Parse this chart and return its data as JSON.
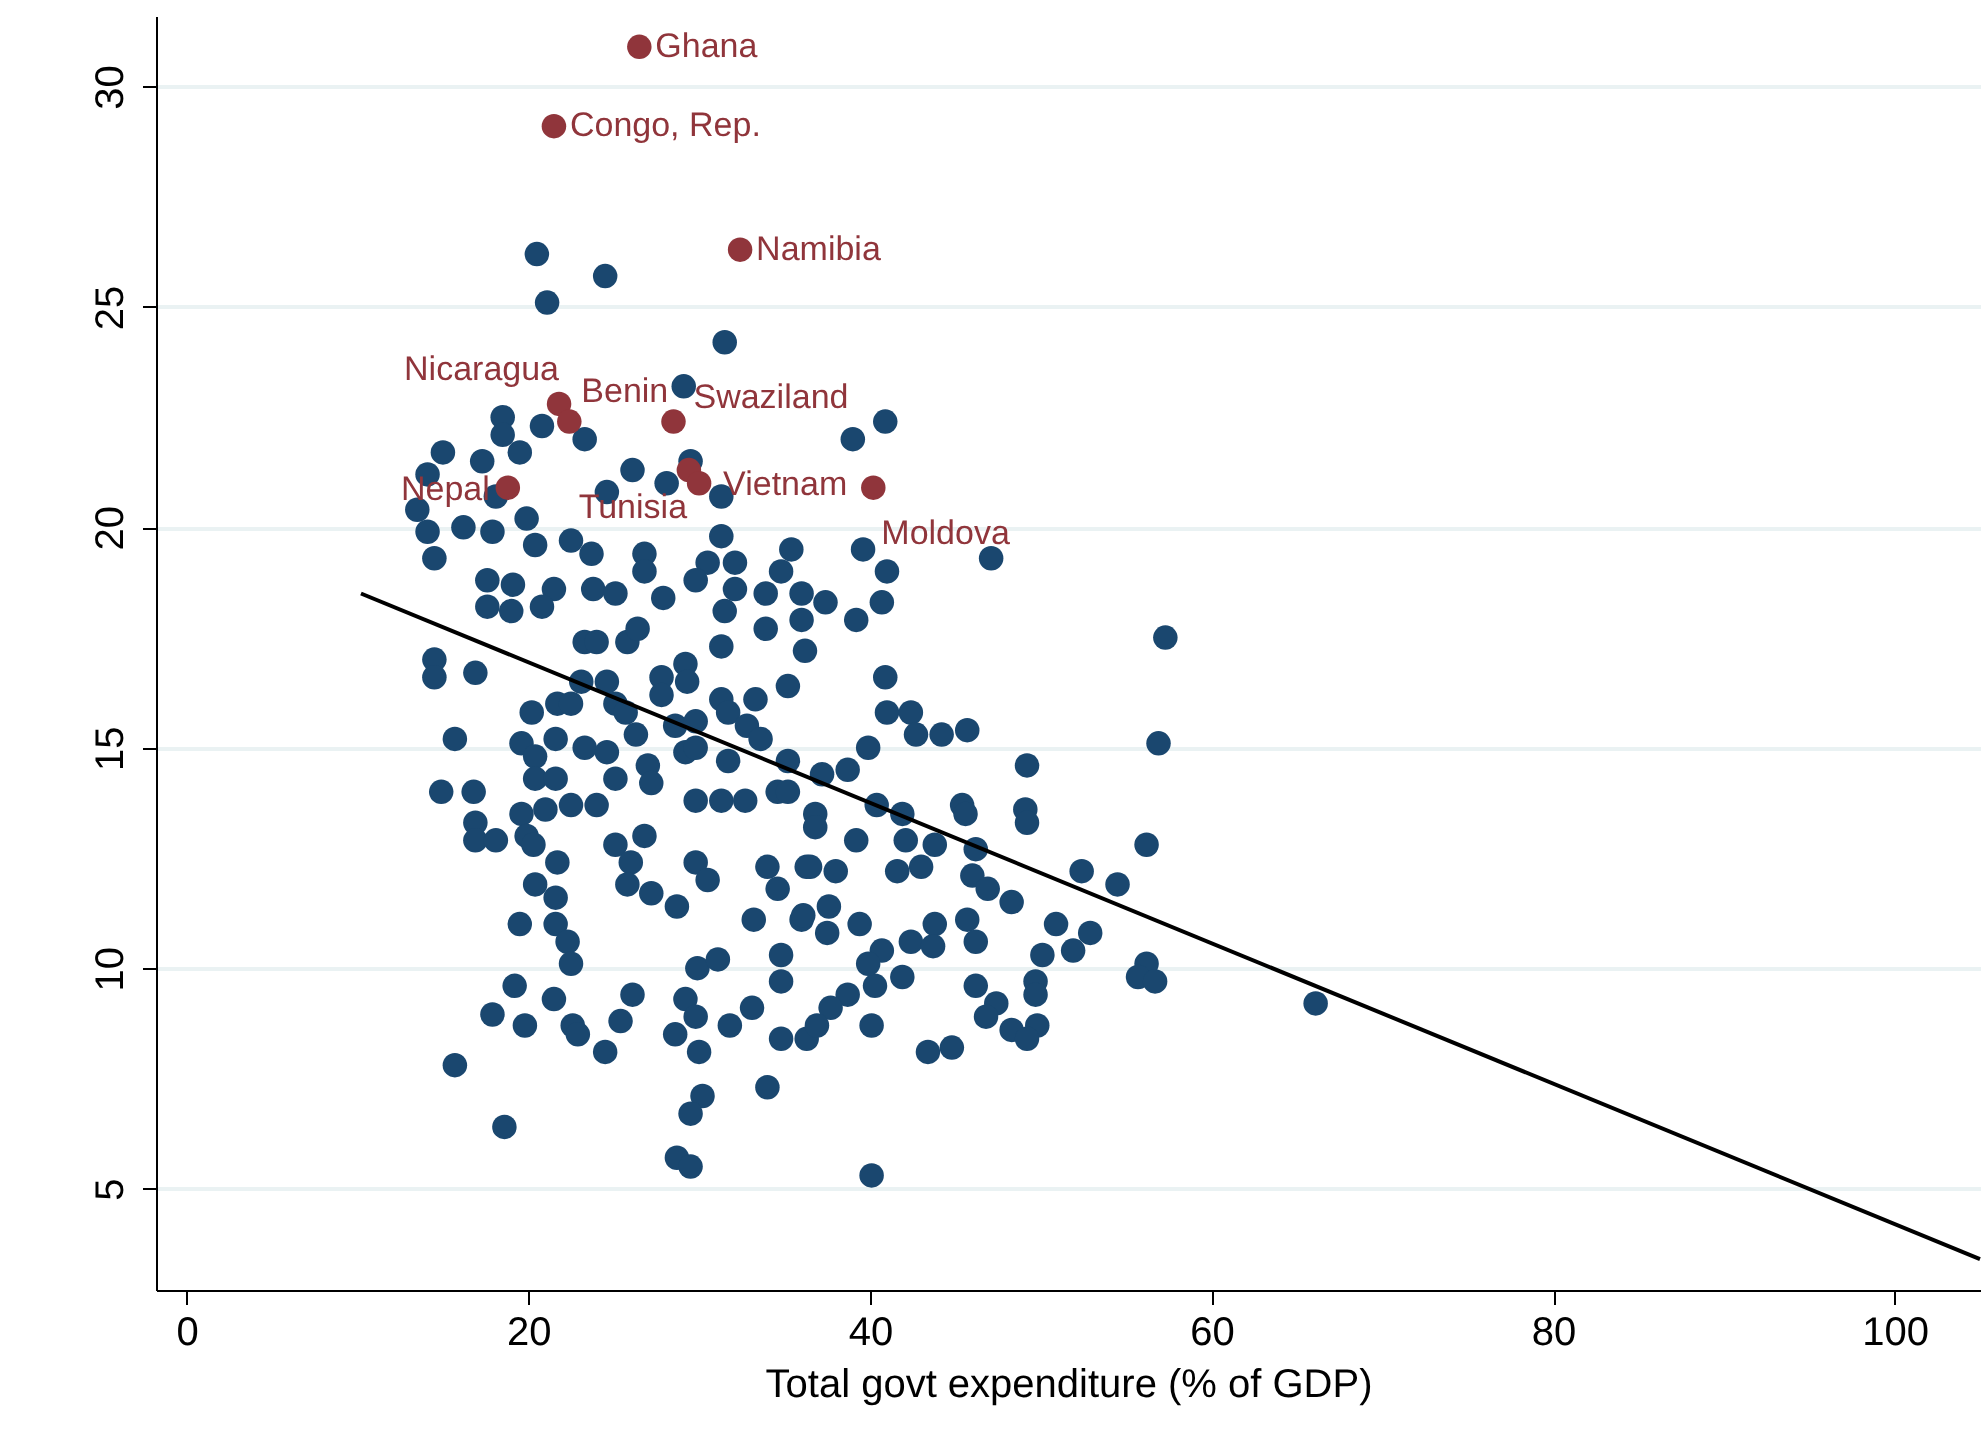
{
  "chart_data": {
    "type": "scatter",
    "xlabel": "Total govt expenditure (% of GDP)",
    "xlim": [
      -1.8,
      105
    ],
    "ylim": [
      2.7,
      31.6
    ],
    "xticks": [
      0,
      20,
      40,
      60,
      80,
      100
    ],
    "yticks": [
      5,
      10,
      15,
      20,
      25,
      30
    ],
    "grid": "y",
    "marker": "circle",
    "series": [
      {
        "color": "#1a476f",
        "x": [
          20.5,
          21.1,
          24.5,
          31.5,
          29.1,
          18.5,
          20.8,
          23.3,
          18.5,
          19.5,
          15.0,
          17.3,
          39.0,
          40.9,
          14.1,
          13.5,
          14.1,
          14.5,
          16.2,
          17.9,
          18.1,
          26.1,
          28.1,
          29.5,
          31.3,
          24.6,
          19.9,
          20.4,
          22.5,
          23.7,
          26.8,
          26.8,
          31.3,
          30.5,
          32.1,
          35.4,
          34.8,
          39.6,
          41.0,
          47.1,
          17.6,
          19.1,
          21.5,
          23.8,
          25.1,
          27.9,
          29.8,
          32.1,
          33.9,
          36.0,
          37.4,
          40.7,
          17.6,
          20.8,
          19.0,
          23.3,
          24.0,
          25.8,
          26.4,
          31.5,
          33.9,
          36.0,
          36.2,
          31.3,
          14.5,
          14.5,
          16.9,
          23.1,
          24.6,
          27.8,
          29.2,
          29.3,
          31.3,
          33.3,
          35.2,
          20.2,
          21.7,
          22.5,
          25.1,
          25.7,
          27.8,
          28.6,
          29.8,
          31.7,
          32.8,
          33.6,
          15.7,
          19.6,
          21.6,
          23.3,
          24.6,
          26.3,
          27.0,
          27.2,
          29.2,
          29.8,
          31.7,
          20.4,
          20.4,
          21.6,
          25.1,
          14.9,
          16.8,
          19.6,
          21.0,
          22.5,
          24.0,
          29.8,
          31.3,
          32.7,
          34.6,
          16.9,
          16.9,
          18.1,
          19.9,
          20.3,
          21.7,
          25.1,
          26.8,
          26.0,
          29.8,
          30.5,
          34.0,
          36.3,
          20.4,
          21.6,
          25.8,
          27.2,
          28.7,
          34.6,
          19.5,
          21.6,
          22.3,
          33.2,
          36.0,
          22.5,
          29.9,
          31.1,
          34.8,
          34.8,
          19.2,
          17.9,
          19.8,
          21.5,
          22.6,
          22.9,
          24.5,
          25.4,
          26.1,
          28.6,
          29.2,
          29.8,
          30.0,
          31.8,
          33.1,
          34.8,
          36.3,
          34.0,
          15.7,
          18.6,
          30.2,
          29.5,
          28.7,
          29.5,
          57.3,
          56.9,
          49.2,
          40.9,
          39.2,
          41.0,
          42.4,
          42.7,
          44.2,
          45.7,
          39.9,
          38.7,
          37.2,
          35.2,
          35.2,
          40.4,
          41.9,
          42.1,
          36.8,
          36.8,
          39.2,
          45.4,
          45.6,
          49.1,
          49.2,
          43.8,
          46.2,
          36.5,
          38.0,
          41.6,
          43.0,
          56.2,
          52.4,
          54.5,
          46.0,
          46.9,
          48.3,
          50.9,
          52.9,
          51.9,
          50.1,
          49.7,
          49.7,
          46.2,
          47.4,
          46.8,
          48.3,
          49.8,
          49.2,
          56.2,
          55.7,
          56.7,
          66.1,
          36.1,
          37.6,
          37.5,
          39.4,
          40.7,
          41.9,
          40.3,
          39.9,
          42.4,
          43.8,
          43.7,
          45.7,
          46.2,
          38.7,
          37.7,
          36.9,
          40.1,
          43.4,
          44.8,
          40.1
        ],
        "values": [
          26.2,
          25.1,
          25.7,
          24.2,
          23.2,
          22.5,
          22.3,
          22.0,
          22.1,
          21.7,
          21.7,
          21.5,
          22.0,
          22.4,
          21.2,
          20.4,
          19.9,
          19.3,
          20.0,
          19.9,
          20.7,
          21.3,
          21.0,
          21.5,
          20.7,
          20.8,
          20.2,
          19.6,
          19.7,
          19.4,
          19.4,
          19.0,
          19.8,
          19.2,
          19.2,
          19.5,
          19.0,
          19.5,
          19.0,
          19.3,
          18.8,
          18.7,
          18.6,
          18.6,
          18.5,
          18.4,
          18.8,
          18.6,
          18.5,
          18.5,
          18.3,
          18.3,
          18.2,
          18.2,
          18.1,
          17.4,
          17.4,
          17.4,
          17.7,
          18.1,
          17.7,
          17.9,
          17.2,
          17.3,
          17.0,
          16.6,
          16.7,
          16.5,
          16.5,
          16.6,
          16.9,
          16.5,
          16.1,
          16.1,
          16.4,
          15.8,
          16.0,
          16.0,
          16.0,
          15.8,
          16.2,
          15.5,
          15.6,
          15.8,
          15.5,
          15.2,
          15.2,
          15.1,
          15.2,
          15.0,
          14.9,
          15.3,
          14.6,
          14.2,
          14.9,
          15.0,
          14.7,
          14.8,
          14.3,
          14.3,
          14.3,
          14.0,
          14.0,
          13.5,
          13.6,
          13.7,
          13.7,
          13.8,
          13.8,
          13.8,
          14.0,
          13.3,
          12.9,
          12.9,
          13.0,
          12.8,
          12.4,
          12.8,
          13.0,
          12.4,
          12.4,
          12.0,
          12.3,
          12.3,
          11.9,
          11.6,
          11.9,
          11.7,
          11.4,
          11.8,
          11.0,
          11.0,
          10.6,
          11.1,
          11.1,
          10.1,
          10.0,
          10.2,
          10.3,
          9.7,
          9.6,
          8.95,
          8.7,
          9.3,
          8.7,
          8.5,
          8.1,
          8.8,
          9.4,
          8.5,
          9.3,
          8.9,
          8.1,
          8.7,
          9.1,
          8.4,
          8.4,
          7.3,
          7.8,
          6.4,
          7.1,
          6.7,
          5.7,
          5.5,
          17.5,
          15.1,
          14.6,
          16.6,
          17.9,
          15.8,
          15.8,
          15.3,
          15.3,
          15.4,
          15.0,
          14.5,
          14.4,
          14.7,
          14.0,
          13.7,
          13.5,
          12.9,
          13.5,
          13.2,
          12.9,
          13.7,
          13.5,
          13.6,
          13.3,
          12.8,
          12.7,
          12.3,
          12.2,
          12.2,
          12.3,
          12.8,
          12.2,
          11.9,
          12.1,
          11.8,
          11.5,
          11.0,
          10.8,
          10.4,
          10.3,
          9.7,
          9.4,
          9.6,
          9.2,
          8.9,
          8.6,
          8.7,
          8.4,
          10.1,
          9.8,
          9.7,
          9.2,
          11.2,
          11.4,
          10.8,
          11.0,
          10.4,
          9.8,
          9.6,
          10.1,
          10.6,
          11.0,
          10.5,
          11.1,
          10.6,
          9.4,
          9.1,
          8.7,
          8.7,
          8.1,
          8.2,
          5.3
        ]
      },
      {
        "color": "#90353b",
        "x": [
          26.5,
          21.5,
          32.4,
          21.8,
          22.4,
          28.5,
          18.8,
          29.4,
          30.0,
          40.2
        ],
        "values": [
          30.9,
          29.1,
          26.3,
          22.8,
          22.4,
          22.4,
          20.9,
          21.3,
          21.0,
          20.9
        ]
      },
      {
        "type": "line",
        "color": "#000000",
        "marker": "none",
        "x": [
          10.2,
          105
        ],
        "values": [
          18.5,
          3.4
        ]
      }
    ],
    "annotations": [
      {
        "text": "Ghana",
        "x": 26.5,
        "y": 30.9
      },
      {
        "text": "Congo, Rep.",
        "x": 21.5,
        "y": 29.1
      },
      {
        "text": "Namibia",
        "x": 32.4,
        "y": 26.3
      },
      {
        "text": "Nicaragua",
        "x": 21.8,
        "y": 22.8
      },
      {
        "text": "Benin",
        "x": 22.4,
        "y": 22.4
      },
      {
        "text": "Swaziland",
        "x": 28.5,
        "y": 22.4
      },
      {
        "text": "Nepal",
        "x": 18.8,
        "y": 20.9
      },
      {
        "text": "Tunisia",
        "x": 29.4,
        "y": 21.3
      },
      {
        "text": "Vietnam",
        "x": 30.0,
        "y": 21.0
      },
      {
        "text": "Moldova",
        "x": 40.2,
        "y": 20.9
      }
    ]
  }
}
